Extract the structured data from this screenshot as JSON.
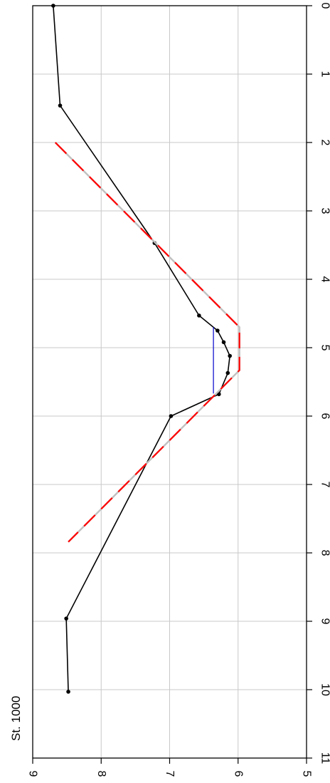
{
  "chart_data": {
    "type": "line",
    "title": "",
    "station_label": "St. 1000",
    "xlabel": "",
    "ylabel": "",
    "xlim": [
      0,
      11
    ],
    "ylim": [
      5,
      9
    ],
    "x_ticks": [
      "0",
      "1",
      "2",
      "3",
      "4",
      "5",
      "6",
      "7",
      "8",
      "9",
      "10",
      "11"
    ],
    "y_ticks": [
      "9",
      "8",
      "7",
      "6",
      "5"
    ],
    "grid": true,
    "series": [
      {
        "style": "black line with points",
        "color": "#000000",
        "x": [
          0.0,
          1.46,
          3.47,
          4.53,
          4.75,
          4.92,
          5.12,
          5.37,
          5.68,
          6.0,
          8.96,
          10.03
        ],
        "y": [
          8.7,
          8.6,
          7.22,
          6.57,
          6.3,
          6.21,
          6.12,
          6.15,
          6.28,
          6.98,
          8.51,
          8.48
        ]
      },
      {
        "style": "red dashed trapezoid",
        "color": "#ff0000",
        "x": [
          2.0,
          4.7,
          5.33,
          7.84
        ],
        "y": [
          8.67,
          5.98,
          5.98,
          8.48
        ]
      },
      {
        "style": "blue level line",
        "color": "#0000cc",
        "x": [
          4.7,
          5.67
        ],
        "y": [
          6.36,
          6.36
        ]
      }
    ]
  }
}
